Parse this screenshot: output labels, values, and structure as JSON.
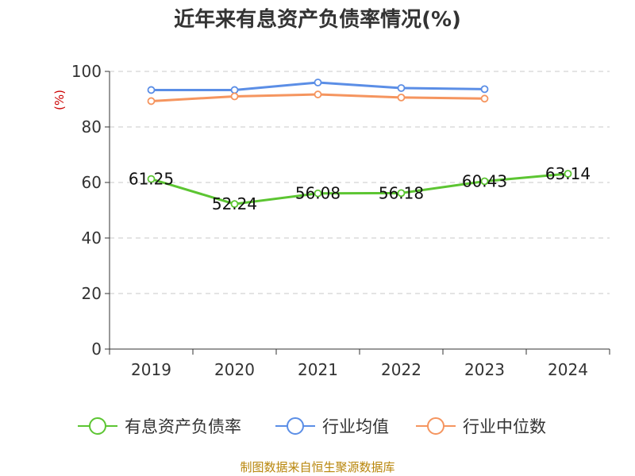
{
  "chart_data": {
    "type": "line",
    "title": "近年来有息资产负债率情况(%)",
    "ylabel": "(%)",
    "xlabel": "",
    "categories": [
      "2019",
      "2020",
      "2021",
      "2022",
      "2023",
      "2024"
    ],
    "ylim": [
      0,
      100
    ],
    "yticks": [
      0,
      20,
      40,
      60,
      80,
      100
    ],
    "grid": true,
    "legend_position": "bottom",
    "series": [
      {
        "name": "有息资产负债率",
        "color": "#5cc532",
        "values": [
          61.25,
          52.24,
          56.08,
          56.18,
          60.43,
          63.14
        ],
        "labels": [
          "61.25",
          "52.24",
          "56.08",
          "56.18",
          "60.43",
          "63.14"
        ]
      },
      {
        "name": "行业均值",
        "color": "#5b8ee6",
        "values": [
          93.3,
          93.3,
          96.0,
          94.0,
          93.6,
          null
        ]
      },
      {
        "name": "行业中位数",
        "color": "#f5955f",
        "values": [
          89.3,
          91.0,
          91.7,
          90.6,
          90.2,
          null
        ]
      }
    ]
  },
  "source": "制图数据来自恒生聚源数据库"
}
